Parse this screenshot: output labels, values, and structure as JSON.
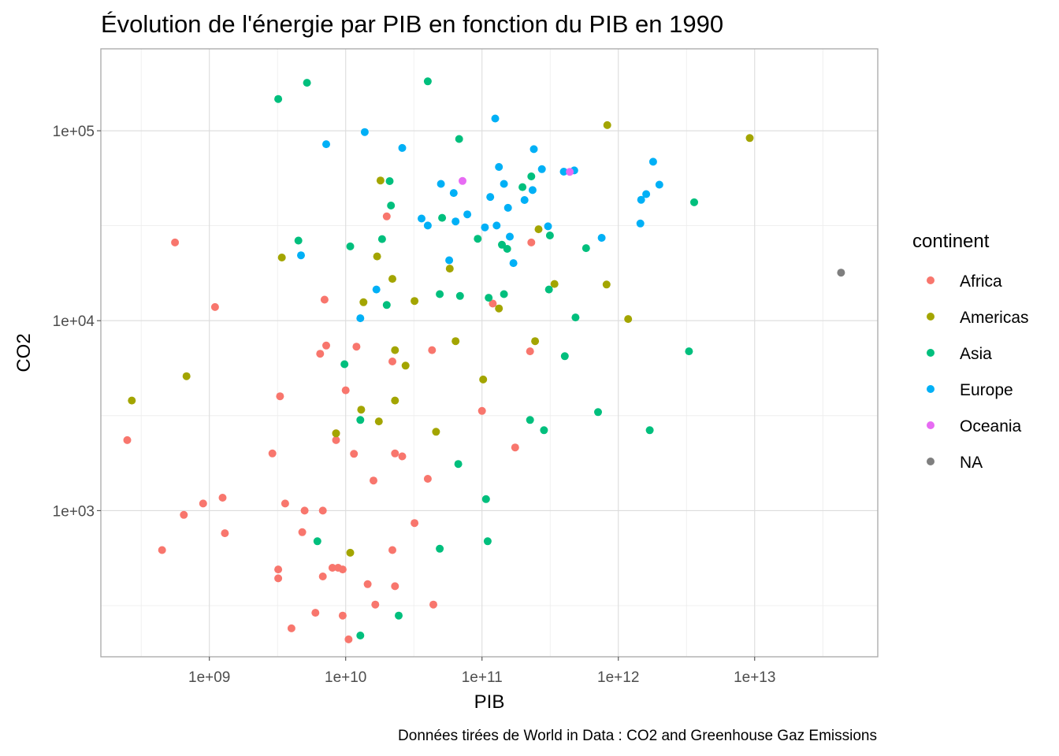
{
  "chart_data": {
    "type": "scatter",
    "title": "Évolution de l'énergie par PIB en fonction du PIB en 1990",
    "xlabel": "PIB",
    "ylabel": "CO2",
    "caption": "Données tirées de World in Data : CO2 and Greenhouse Gaz Emissions",
    "x_scale": "log10",
    "y_scale": "log10",
    "xlim": [
      160000000,
      80000000000000
    ],
    "ylim": [
      170,
      270000
    ],
    "x_ticks": [
      1000000000,
      10000000000,
      100000000000,
      1000000000000,
      10000000000000
    ],
    "x_tick_labels": [
      "1e+09",
      "1e+10",
      "1e+11",
      "1e+12",
      "1e+13"
    ],
    "y_ticks": [
      1000,
      10000,
      100000
    ],
    "y_tick_labels": [
      "1e+03",
      "1e+04",
      "1e+05"
    ],
    "grid": true,
    "legend": {
      "title": "continent",
      "placement": "right",
      "entries": [
        {
          "name": "Africa",
          "color": "#F8766D"
        },
        {
          "name": "Americas",
          "color": "#A3A500"
        },
        {
          "name": "Asia",
          "color": "#00BF7D"
        },
        {
          "name": "Europe",
          "color": "#00B0F6"
        },
        {
          "name": "Oceania",
          "color": "#E76BF3"
        },
        {
          "name": "NA",
          "color": "#7F7F7F"
        }
      ]
    },
    "series": [
      {
        "name": "Africa",
        "color": "#F8766D",
        "points": [
          [
            560000000.0,
            25800
          ],
          [
            1100000000.0,
            11800
          ],
          [
            250000000.0,
            2350
          ],
          [
            450000000.0,
            620
          ],
          [
            650000000.0,
            950
          ],
          [
            900000000.0,
            1090
          ],
          [
            1250000000.0,
            1170
          ],
          [
            1300000000.0,
            760
          ],
          [
            2900000000.0,
            2000
          ],
          [
            3300000000.0,
            4000
          ],
          [
            3600000000.0,
            1090
          ],
          [
            3200000000.0,
            490
          ],
          [
            3200000000.0,
            440
          ],
          [
            4000000000.0,
            240
          ],
          [
            4800000000.0,
            770
          ],
          [
            5000000000.0,
            1000
          ],
          [
            6500000000.0,
            6700
          ],
          [
            7000000000.0,
            12900
          ],
          [
            7200000000.0,
            7400
          ],
          [
            6800000000.0,
            1000
          ],
          [
            6800000000.0,
            450
          ],
          [
            8000000000.0,
            500
          ],
          [
            8500000000.0,
            2550
          ],
          [
            8500000000.0,
            2350
          ],
          [
            8800000000.0,
            500
          ],
          [
            9500000000.0,
            490
          ],
          [
            9500000000.0,
            280
          ],
          [
            10000000000.0,
            4300
          ],
          [
            10500000000.0,
            210
          ],
          [
            11500000000.0,
            1990
          ],
          [
            12000000000.0,
            7300
          ],
          [
            14500000000.0,
            410
          ],
          [
            16000000000.0,
            1440
          ],
          [
            16500000000.0,
            320
          ],
          [
            20000000000.0,
            35400
          ],
          [
            22000000000.0,
            6100
          ],
          [
            23000000000.0,
            2000
          ],
          [
            22000000000.0,
            620
          ],
          [
            23000000000.0,
            400
          ],
          [
            26000000000.0,
            1930
          ],
          [
            32000000000.0,
            860
          ],
          [
            40000000000.0,
            1470
          ],
          [
            43000000000.0,
            7000
          ],
          [
            44000000000.0,
            320
          ],
          [
            100000000000.0,
            3350
          ],
          [
            120000000000.0,
            12300
          ],
          [
            175000000000.0,
            2150
          ],
          [
            225000000000.0,
            6900
          ],
          [
            230000000000.0,
            25800
          ],
          [
            6000000000.0,
            290
          ]
        ]
      },
      {
        "name": "Americas",
        "color": "#A3A500",
        "points": [
          [
            270000000.0,
            3800
          ],
          [
            680000000.0,
            5100
          ],
          [
            3400000000.0,
            21500
          ],
          [
            8500000000.0,
            2550
          ],
          [
            10800000000.0,
            600
          ],
          [
            13000000000.0,
            3400
          ],
          [
            13500000000.0,
            12500
          ],
          [
            17000000000.0,
            21800
          ],
          [
            17500000000.0,
            2950
          ],
          [
            18000000000.0,
            54700
          ],
          [
            22000000000.0,
            16600
          ],
          [
            23000000000.0,
            3800
          ],
          [
            23000000000.0,
            7000
          ],
          [
            27500000000.0,
            5800
          ],
          [
            32000000000.0,
            12700
          ],
          [
            46000000000.0,
            2600
          ],
          [
            58000000000.0,
            18800
          ],
          [
            64000000000.0,
            7800
          ],
          [
            102000000000.0,
            4900
          ],
          [
            133000000000.0,
            11600
          ],
          [
            245000000000.0,
            7800
          ],
          [
            260000000000.0,
            30300
          ],
          [
            340000000000.0,
            15600
          ],
          [
            820000000000.0,
            15500
          ],
          [
            830000000000.0,
            107000
          ],
          [
            1180000000000.0,
            10200
          ],
          [
            9200000000000.0,
            91500
          ]
        ]
      },
      {
        "name": "Asia",
        "color": "#00BF7D",
        "points": [
          [
            3200000000.0,
            147000
          ],
          [
            5200000000.0,
            179000
          ],
          [
            4500000000.0,
            26400
          ],
          [
            6200000000.0,
            690
          ],
          [
            9800000000.0,
            5900
          ],
          [
            10800000000.0,
            24600
          ],
          [
            12800000000.0,
            3000
          ],
          [
            12800000000.0,
            220
          ],
          [
            18500000000.0,
            26900
          ],
          [
            20000000000.0,
            12100
          ],
          [
            21000000000.0,
            54300
          ],
          [
            21500000000.0,
            40400
          ],
          [
            24500000000.0,
            280
          ],
          [
            40000000000.0,
            182000
          ],
          [
            49000000000.0,
            630
          ],
          [
            49000000000.0,
            13800
          ],
          [
            51000000000.0,
            34800
          ],
          [
            67000000000.0,
            1760
          ],
          [
            69000000000.0,
            13500
          ],
          [
            68000000000.0,
            90500
          ],
          [
            93000000000.0,
            27000
          ],
          [
            107000000000.0,
            1150
          ],
          [
            110000000000.0,
            690
          ],
          [
            112000000000.0,
            13200
          ],
          [
            140000000000.0,
            25100
          ],
          [
            145000000000.0,
            13800
          ],
          [
            153000000000.0,
            23900
          ],
          [
            198000000000.0,
            50500
          ],
          [
            225000000000.0,
            3000
          ],
          [
            230000000000.0,
            57500
          ],
          [
            285000000000.0,
            2650
          ],
          [
            310000000000.0,
            14600
          ],
          [
            315000000000.0,
            28100
          ],
          [
            405000000000.0,
            6500
          ],
          [
            485000000000.0,
            10400
          ],
          [
            580000000000.0,
            24100
          ],
          [
            710000000000.0,
            3300
          ],
          [
            1700000000000.0,
            2650
          ],
          [
            3300000000000.0,
            6900
          ],
          [
            3600000000000.0,
            42000
          ]
        ]
      },
      {
        "name": "Europe",
        "color": "#00B0F6",
        "points": [
          [
            4700000000.0,
            22100
          ],
          [
            7200000000.0,
            85000
          ],
          [
            12800000000.0,
            10300
          ],
          [
            13800000000.0,
            98400
          ],
          [
            16800000000.0,
            14600
          ],
          [
            26000000000.0,
            81200
          ],
          [
            36000000000.0,
            34500
          ],
          [
            40000000000.0,
            31700
          ],
          [
            50000000000.0,
            52500
          ],
          [
            57500000000.0,
            20800
          ],
          [
            62000000000.0,
            47000
          ],
          [
            64000000000.0,
            33300
          ],
          [
            78000000000.0,
            36300
          ],
          [
            105000000000.0,
            31000
          ],
          [
            115000000000.0,
            44800
          ],
          [
            125000000000.0,
            116000
          ],
          [
            128000000000.0,
            31700
          ],
          [
            133000000000.0,
            64500
          ],
          [
            145000000000.0,
            52500
          ],
          [
            155000000000.0,
            39300
          ],
          [
            160000000000.0,
            27700
          ],
          [
            170000000000.0,
            20100
          ],
          [
            205000000000.0,
            43200
          ],
          [
            235000000000.0,
            48700
          ],
          [
            240000000000.0,
            80000
          ],
          [
            275000000000.0,
            62800
          ],
          [
            305000000000.0,
            31400
          ],
          [
            398000000000.0,
            60900
          ],
          [
            475000000000.0,
            61800
          ],
          [
            755000000000.0,
            27300
          ],
          [
            1450000000000.0,
            32500
          ],
          [
            1470000000000.0,
            43300
          ],
          [
            1600000000000.0,
            46400
          ],
          [
            1800000000000.0,
            68700
          ],
          [
            2000000000000.0,
            52000
          ]
        ]
      },
      {
        "name": "Oceania",
        "color": "#E76BF3",
        "points": [
          [
            72000000000.0,
            54400
          ],
          [
            440000000000.0,
            60800
          ]
        ]
      },
      {
        "name": "NA",
        "color": "#7F7F7F",
        "points": [
          [
            43000000000000.0,
            17900
          ]
        ]
      }
    ]
  }
}
